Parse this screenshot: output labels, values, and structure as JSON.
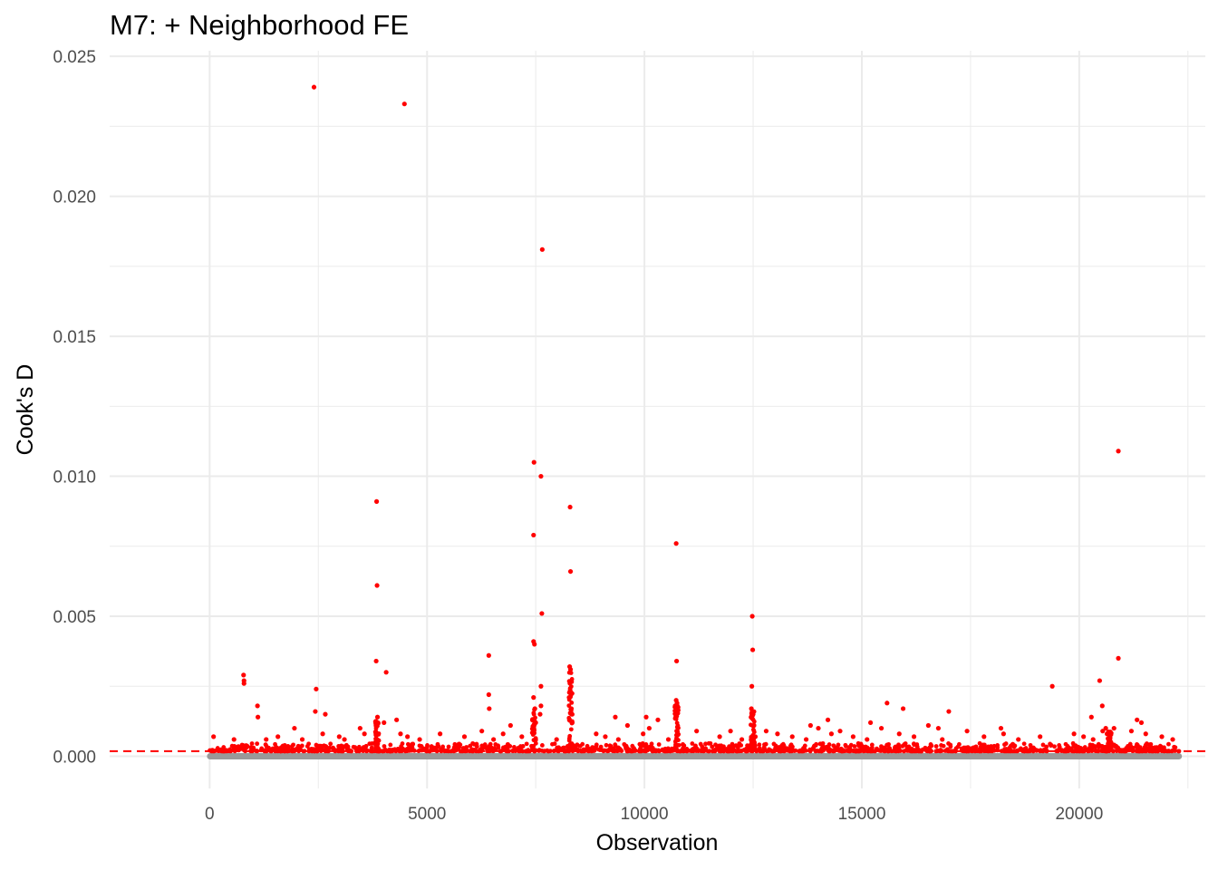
{
  "chart_data": {
    "type": "scatter",
    "title": "M7: + Neighborhood FE",
    "xlabel": "Observation",
    "ylabel": "Cook's D",
    "xlim": [
      -2300,
      22900
    ],
    "ylim": [
      -0.00115,
      0.0252
    ],
    "x_ticks": [
      0,
      5000,
      10000,
      15000,
      20000
    ],
    "x_tick_labels": [
      "0",
      "5000",
      "10000",
      "15000",
      "20000"
    ],
    "y_ticks": [
      0.0,
      0.005,
      0.01,
      0.015,
      0.02,
      0.025
    ],
    "y_tick_labels": [
      "0.000",
      "0.005",
      "0.010",
      "0.015",
      "0.020",
      "0.025"
    ],
    "grid": true,
    "legend": "none",
    "n_observations": 22300,
    "threshold": 0.00018,
    "colors": {
      "influential_points": "#ff0000",
      "baseline_points": "#999999",
      "threshold_line": "#ff0000",
      "grid": "#ebebeb"
    },
    "series": [
      {
        "points": [
          [
            2400,
            0.0239
          ],
          [
            4480,
            0.0233
          ],
          [
            7650,
            0.0181
          ],
          [
            20900,
            0.0109
          ],
          [
            7460,
            0.0105
          ],
          [
            7620,
            0.01
          ],
          [
            3840,
            0.0091
          ],
          [
            8290,
            0.0089
          ],
          [
            7450,
            0.0079
          ],
          [
            10730,
            0.0076
          ],
          [
            8300,
            0.0066
          ],
          [
            3850,
            0.0061
          ],
          [
            7640,
            0.0051
          ],
          [
            12480,
            0.005
          ],
          [
            7450,
            0.0041
          ],
          [
            7470,
            0.004
          ],
          [
            12490,
            0.0038
          ],
          [
            6420,
            0.0036
          ],
          [
            3830,
            0.0034
          ],
          [
            10740,
            0.0034
          ],
          [
            20900,
            0.0035
          ],
          [
            8280,
            0.0032
          ],
          [
            8300,
            0.0031
          ],
          [
            4060,
            0.003
          ],
          [
            780,
            0.0029
          ],
          [
            790,
            0.0027
          ],
          [
            20470,
            0.0027
          ],
          [
            790,
            0.0026
          ],
          [
            19380,
            0.0025
          ],
          [
            7620,
            0.0025
          ],
          [
            12470,
            0.0025
          ],
          [
            2450,
            0.0024
          ],
          [
            6420,
            0.0022
          ],
          [
            8310,
            0.0022
          ],
          [
            7450,
            0.0021
          ],
          [
            10730,
            0.002
          ],
          [
            10750,
            0.0019
          ],
          [
            15580,
            0.0019
          ],
          [
            1100,
            0.0018
          ],
          [
            7620,
            0.0018
          ],
          [
            20530,
            0.0018
          ],
          [
            6430,
            0.0017
          ],
          [
            7480,
            0.0017
          ],
          [
            8320,
            0.0017
          ],
          [
            12460,
            0.0017
          ],
          [
            15950,
            0.0017
          ],
          [
            17000,
            0.0016
          ],
          [
            2430,
            0.0016
          ],
          [
            2660,
            0.0015
          ],
          [
            1110,
            0.0014
          ],
          [
            9330,
            0.0014
          ],
          [
            10720,
            0.0014
          ],
          [
            3860,
            0.0014
          ],
          [
            7600,
            0.0015
          ],
          [
            8330,
            0.0015
          ],
          [
            12500,
            0.0015
          ],
          [
            20280,
            0.0014
          ],
          [
            10040,
            0.0014
          ],
          [
            4300,
            0.0013
          ],
          [
            10310,
            0.0013
          ],
          [
            14220,
            0.0013
          ],
          [
            21330,
            0.0013
          ],
          [
            3870,
            0.0012
          ],
          [
            4010,
            0.0012
          ],
          [
            7500,
            0.0012
          ],
          [
            8340,
            0.0012
          ],
          [
            15200,
            0.0012
          ],
          [
            16530,
            0.0011
          ],
          [
            21430,
            0.0012
          ],
          [
            6920,
            0.0011
          ],
          [
            9610,
            0.0011
          ],
          [
            12520,
            0.0011
          ],
          [
            13820,
            0.0011
          ],
          [
            18200,
            0.001
          ],
          [
            20610,
            0.001
          ],
          [
            1950,
            0.001
          ],
          [
            3460,
            0.001
          ],
          [
            10110,
            0.001
          ],
          [
            14000,
            0.001
          ],
          [
            15450,
            0.001
          ],
          [
            16760,
            0.001
          ],
          [
            20800,
            0.001
          ],
          [
            6260,
            0.0009
          ],
          [
            11200,
            0.0009
          ],
          [
            11980,
            0.0009
          ],
          [
            12800,
            0.0009
          ],
          [
            14500,
            0.0009
          ],
          [
            17420,
            0.0009
          ],
          [
            20540,
            0.0009
          ],
          [
            21200,
            0.0009
          ],
          [
            2600,
            0.0008
          ],
          [
            3560,
            0.0008
          ],
          [
            4390,
            0.0008
          ],
          [
            5300,
            0.0008
          ],
          [
            6750,
            0.0008
          ],
          [
            8890,
            0.0008
          ],
          [
            9970,
            0.0008
          ],
          [
            13060,
            0.0008
          ],
          [
            14300,
            0.0008
          ],
          [
            15860,
            0.0008
          ],
          [
            18260,
            0.0008
          ],
          [
            19880,
            0.0008
          ],
          [
            20640,
            0.0008
          ],
          [
            21530,
            0.0008
          ],
          [
            90,
            0.0007
          ],
          [
            1570,
            0.0007
          ],
          [
            2980,
            0.0007
          ],
          [
            4550,
            0.0007
          ],
          [
            5860,
            0.0007
          ],
          [
            7180,
            0.0007
          ],
          [
            9100,
            0.0007
          ],
          [
            11730,
            0.0007
          ],
          [
            12550,
            0.0007
          ],
          [
            13400,
            0.0007
          ],
          [
            14800,
            0.0007
          ],
          [
            16200,
            0.0007
          ],
          [
            17810,
            0.0007
          ],
          [
            19100,
            0.0007
          ],
          [
            20100,
            0.0007
          ],
          [
            21900,
            0.0007
          ],
          [
            560,
            0.0006
          ],
          [
            1300,
            0.0006
          ],
          [
            2130,
            0.0006
          ],
          [
            3100,
            0.0006
          ],
          [
            4830,
            0.0006
          ],
          [
            6530,
            0.0006
          ],
          [
            7980,
            0.0006
          ],
          [
            9400,
            0.0006
          ],
          [
            10550,
            0.0006
          ],
          [
            12240,
            0.0006
          ],
          [
            13720,
            0.0006
          ],
          [
            15120,
            0.0006
          ],
          [
            16850,
            0.0006
          ],
          [
            18600,
            0.0006
          ],
          [
            20320,
            0.0006
          ],
          [
            22150,
            0.0006
          ]
        ]
      }
    ]
  }
}
